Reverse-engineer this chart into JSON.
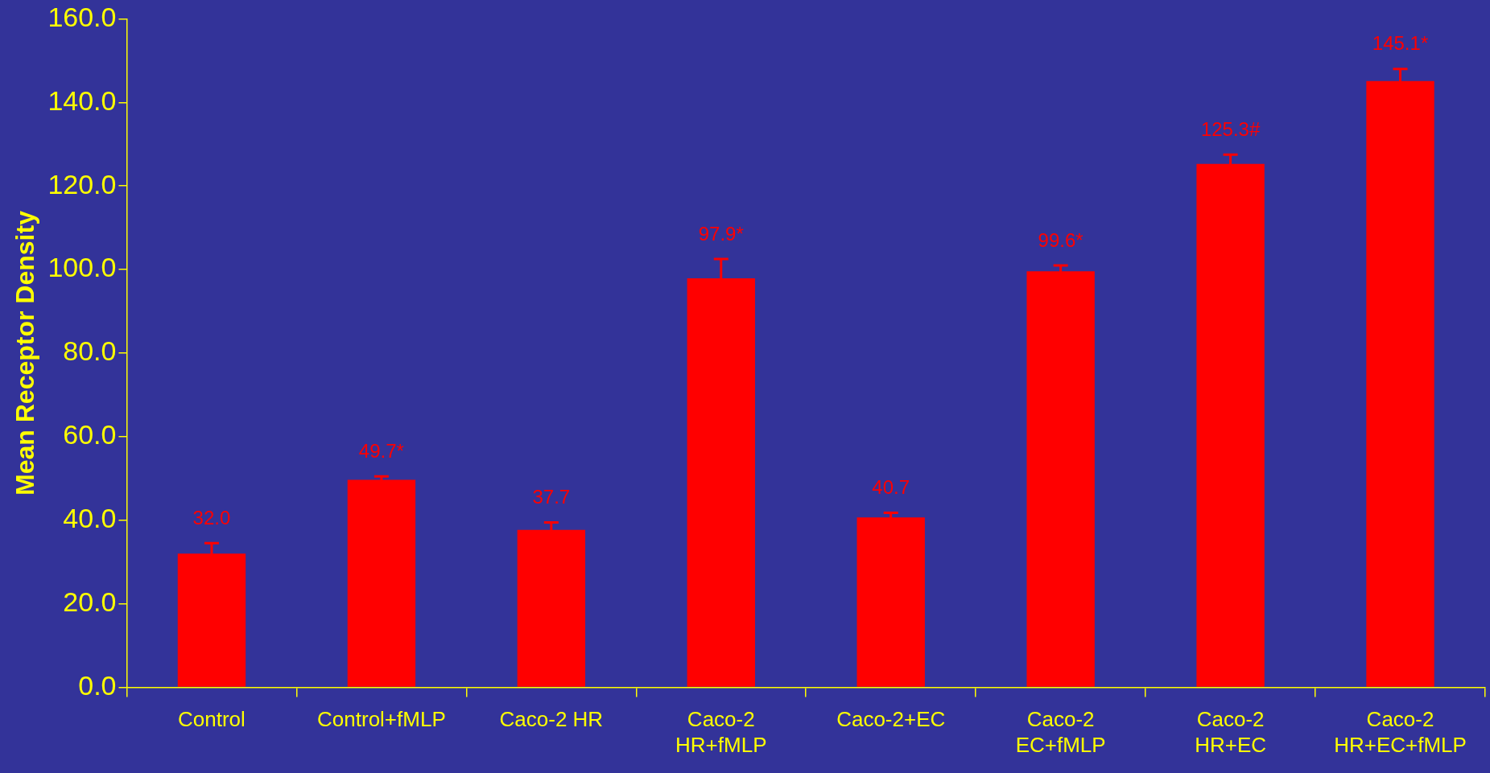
{
  "chart_data": {
    "type": "bar",
    "ylabel": "Mean Receptor Density",
    "categories": [
      "Control",
      "Control+fMLP",
      "Caco-2 HR",
      "Caco-2 HR+fMLP",
      "Caco-2+EC",
      "Caco-2 EC+fMLP",
      "Caco-2 HR+EC",
      "Caco-2 HR+EC+fMLP"
    ],
    "values": [
      32.0,
      49.7,
      37.7,
      97.9,
      40.7,
      99.6,
      125.3,
      145.1
    ],
    "errors": [
      2.5,
      0.8,
      1.8,
      4.6,
      1.1,
      1.4,
      2.2,
      2.9
    ],
    "value_labels": [
      "32.0",
      "49.7*",
      "37.7",
      "97.9*",
      "40.7",
      "99.6*",
      "125.3#",
      "145.1*"
    ],
    "color": "#ff0000",
    "ylim": [
      0,
      160
    ],
    "yticks": [
      {
        "value": 0,
        "label": "0.0"
      },
      {
        "value": 20,
        "label": "20.0"
      },
      {
        "value": 40,
        "label": "40.0"
      },
      {
        "value": 60,
        "label": "60.0"
      },
      {
        "value": 80,
        "label": "80.0"
      },
      {
        "value": 100,
        "label": "100.0"
      },
      {
        "value": 120,
        "label": "120.0"
      },
      {
        "value": 140,
        "label": "140.0"
      },
      {
        "value": 160,
        "label": "160.0"
      }
    ],
    "grid": false,
    "legend": false
  }
}
